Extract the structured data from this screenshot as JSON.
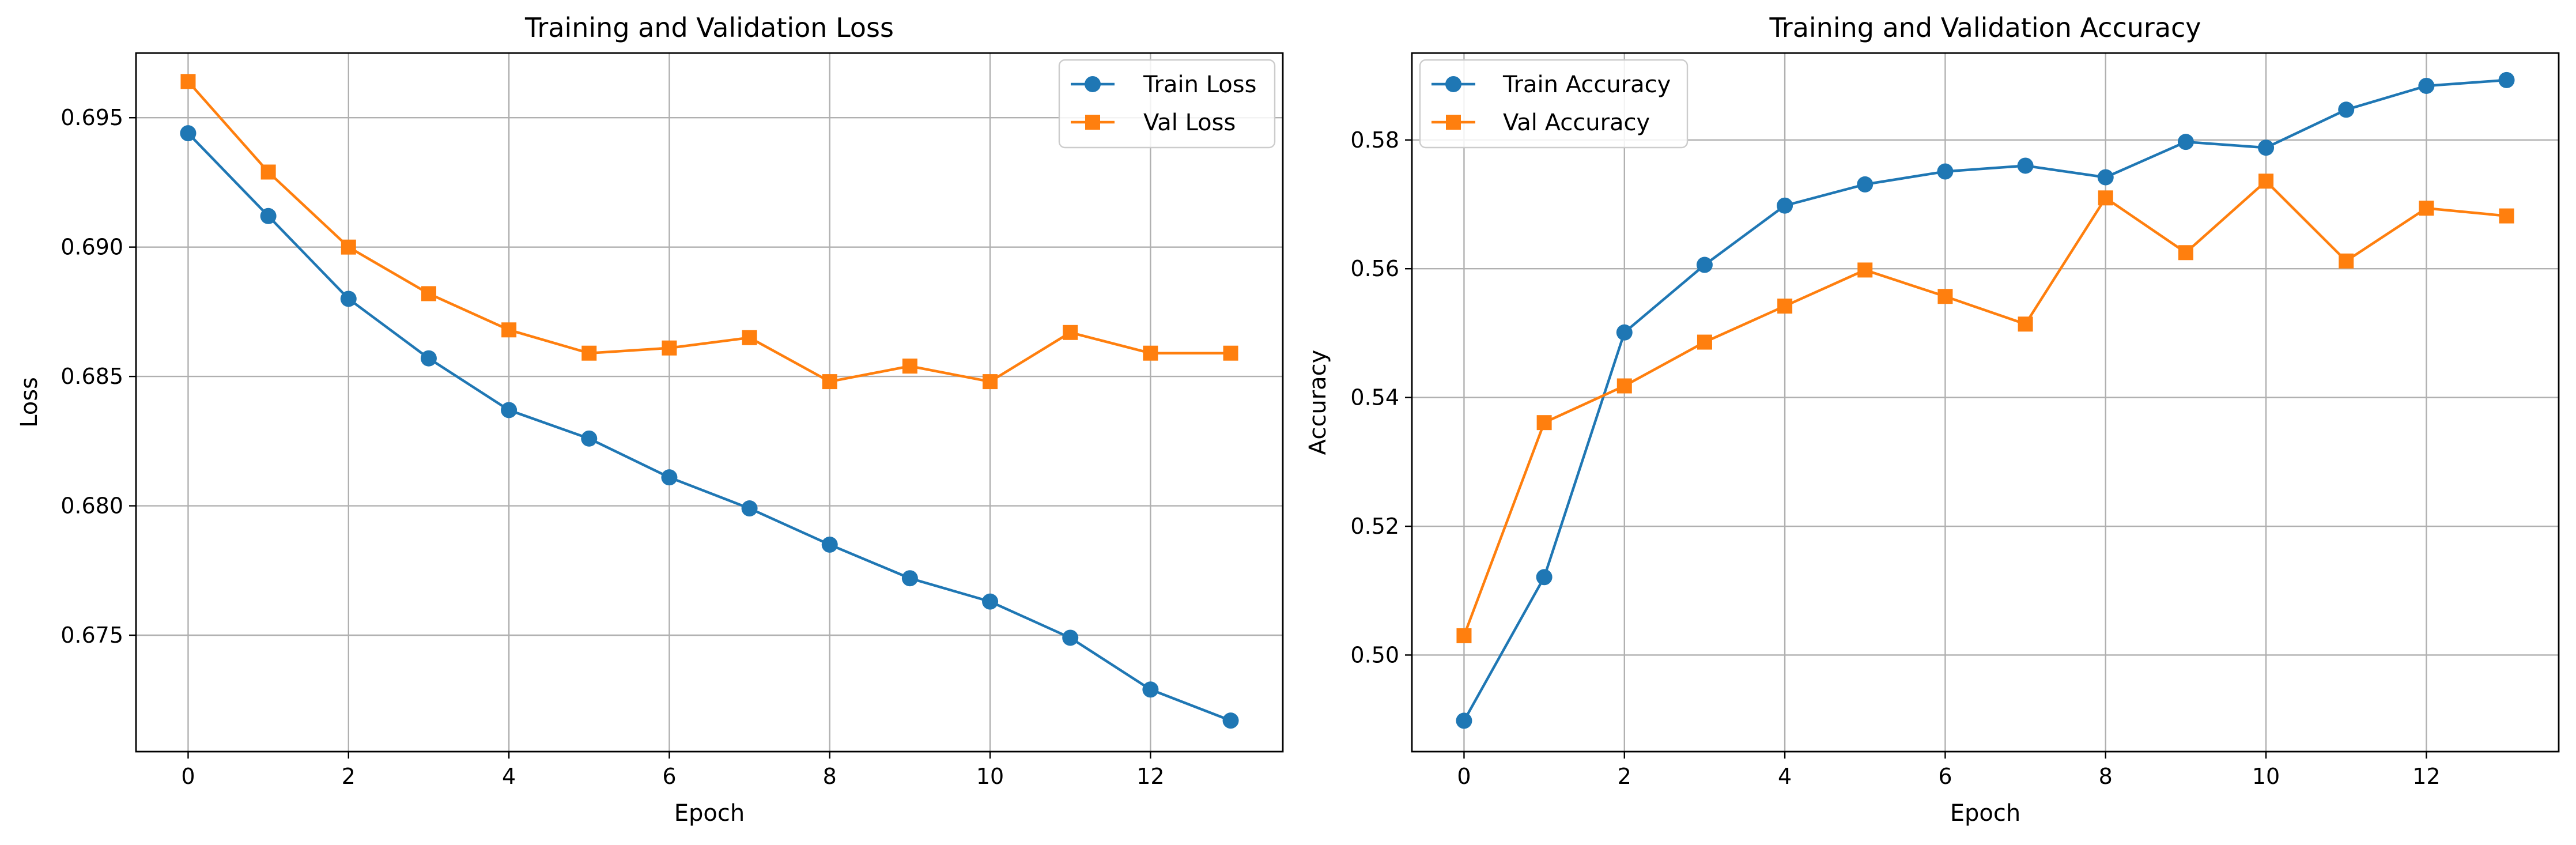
{
  "chart_data": [
    {
      "type": "line",
      "title": "Training and Validation Loss",
      "xlabel": "Epoch",
      "ylabel": "Loss",
      "xlim": [
        -0.65,
        13.65
      ],
      "ylim": [
        0.6705,
        0.6975
      ],
      "x_ticks": [
        0,
        2,
        4,
        6,
        8,
        10,
        12
      ],
      "y_ticks": [
        0.675,
        0.68,
        0.685,
        0.69,
        0.695
      ],
      "y_tick_labels": [
        "0.675",
        "0.680",
        "0.685",
        "0.690",
        "0.695"
      ],
      "grid": true,
      "legend_position": "upper right",
      "x": [
        0,
        1,
        2,
        3,
        4,
        5,
        6,
        7,
        8,
        9,
        10,
        11,
        12,
        13
      ],
      "series": [
        {
          "name": "Train Loss",
          "color": "#1f77b4",
          "marker": "circle",
          "values": [
            0.6944,
            0.6912,
            0.688,
            0.6857,
            0.6837,
            0.6826,
            0.6811,
            0.6799,
            0.6785,
            0.6772,
            0.6763,
            0.6749,
            0.6729,
            0.6717
          ]
        },
        {
          "name": "Val Loss",
          "color": "#ff7f0e",
          "marker": "square",
          "values": [
            0.6964,
            0.6929,
            0.69,
            0.6882,
            0.6868,
            0.6859,
            0.6861,
            0.6865,
            0.6848,
            0.6854,
            0.6848,
            0.6867,
            0.6859,
            0.6859
          ]
        }
      ]
    },
    {
      "type": "line",
      "title": "Training and Validation Accuracy",
      "xlabel": "Epoch",
      "ylabel": "Accuracy",
      "xlim": [
        -0.65,
        13.65
      ],
      "ylim": [
        0.485,
        0.5935
      ],
      "x_ticks": [
        0,
        2,
        4,
        6,
        8,
        10,
        12
      ],
      "y_ticks": [
        0.5,
        0.52,
        0.54,
        0.56,
        0.58
      ],
      "y_tick_labels": [
        "0.50",
        "0.52",
        "0.54",
        "0.56",
        "0.58"
      ],
      "grid": true,
      "legend_position": "upper left",
      "x": [
        0,
        1,
        2,
        3,
        4,
        5,
        6,
        7,
        8,
        9,
        10,
        11,
        12,
        13
      ],
      "series": [
        {
          "name": "Train Accuracy",
          "color": "#1f77b4",
          "marker": "circle",
          "values": [
            0.4898,
            0.5121,
            0.5501,
            0.5606,
            0.5698,
            0.5731,
            0.5751,
            0.576,
            0.5742,
            0.5797,
            0.5788,
            0.5847,
            0.5884,
            0.5893
          ]
        },
        {
          "name": "Val Accuracy",
          "color": "#ff7f0e",
          "marker": "square",
          "values": [
            0.503,
            0.5361,
            0.5418,
            0.5486,
            0.5542,
            0.5598,
            0.5557,
            0.5514,
            0.571,
            0.5625,
            0.5736,
            0.5612,
            0.5694,
            0.5682
          ]
        }
      ]
    }
  ]
}
